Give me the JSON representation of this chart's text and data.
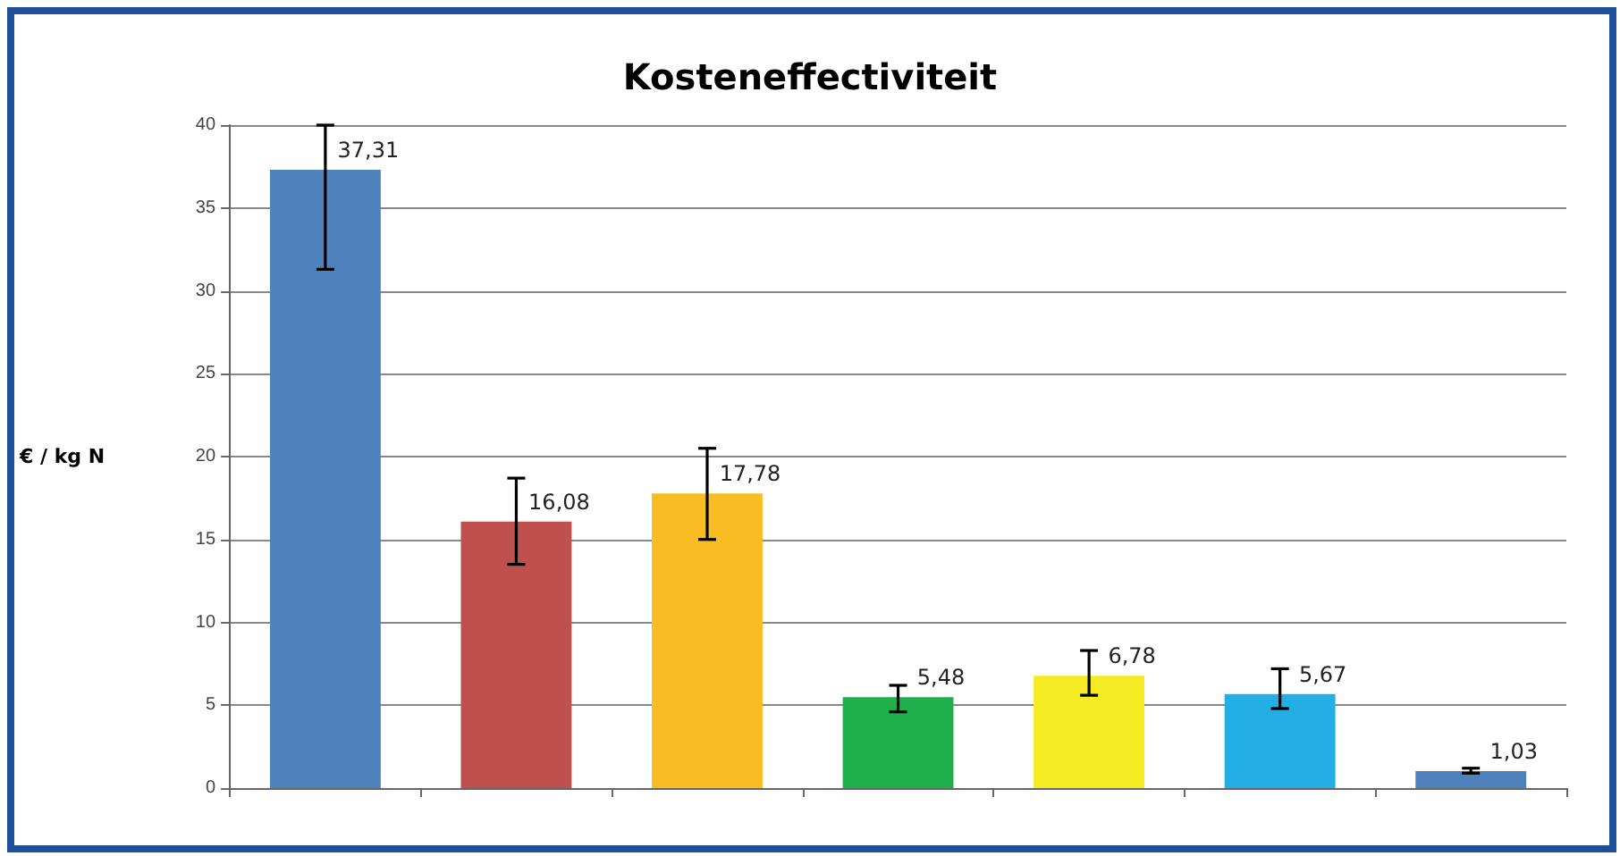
{
  "chart_data": {
    "type": "bar",
    "title": "Kosteneffectiviteit",
    "ylabel": "€ / kg N",
    "categories": [
      null,
      null,
      null,
      null,
      null,
      null,
      null
    ],
    "values": [
      37.31,
      16.08,
      17.78,
      5.48,
      6.78,
      5.67,
      1.03
    ],
    "colors": [
      "#4f81bd",
      "#c0504d",
      "#f9bc22",
      "#1fb04c",
      "#f5eb23",
      "#23aee5",
      "#4f81bd"
    ],
    "value_labels": [
      "37,31",
      "16,08",
      "17,78",
      "5,48",
      "6,78",
      "5,67",
      "1,03"
    ],
    "errors": [
      [
        31.3,
        40
      ],
      [
        13.5,
        18.7
      ],
      [
        15,
        20.5
      ],
      [
        4.6,
        6.2
      ],
      [
        5.6,
        8.3
      ],
      [
        4.8,
        7.2
      ],
      [
        0.9,
        1.2
      ]
    ],
    "ylim": [
      0,
      40
    ],
    "yticks": [
      0,
      5,
      10,
      15,
      20,
      25,
      30,
      35,
      40
    ],
    "grid": "y"
  }
}
